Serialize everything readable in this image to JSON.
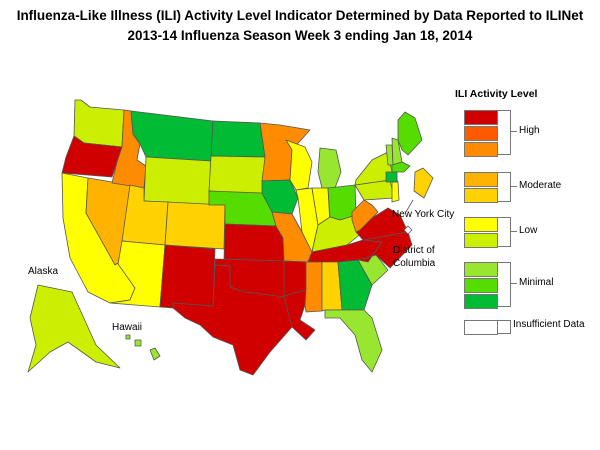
{
  "title": {
    "line1": "Influenza-Like Illness (ILI) Activity Level Indicator Determined by Data Reported to ILINet",
    "line2": "2013-14  Influenza Season Week  3 ending Jan 18, 2014"
  },
  "legend": {
    "title": "ILI Activity Level",
    "levels": [
      {
        "level": 10,
        "color": "#d00000"
      },
      {
        "level": 9,
        "color": "#ff5a00"
      },
      {
        "level": 8,
        "color": "#ff8c00"
      },
      {
        "level": 7,
        "color": "#ffb300"
      },
      {
        "level": 6,
        "color": "#ffd200"
      },
      {
        "level": 5,
        "color": "#ffff00"
      },
      {
        "level": 4,
        "color": "#ccee00"
      },
      {
        "level": 3,
        "color": "#99e630"
      },
      {
        "level": 2,
        "color": "#55dd00"
      },
      {
        "level": 1,
        "color": "#00bb33"
      },
      {
        "level": 0,
        "color": "#ffffff"
      }
    ],
    "groups": {
      "high": "High",
      "moderate": "Moderate",
      "low": "Low",
      "minimal": "Minimal",
      "insufficient": "Insufficient Data"
    }
  },
  "labels": {
    "nyc": "New York City",
    "dc1": "District of",
    "dc2": "Columbia",
    "alaska": "Alaska",
    "hawaii": "Hawaii"
  },
  "states": {
    "WA": 4,
    "OR": 10,
    "CA": 5,
    "NV": 7,
    "ID": 8,
    "MT": 1,
    "WY": 4,
    "UT": 6,
    "AZ": 5,
    "CO": 6,
    "NM": 10,
    "ND": 1,
    "SD": 4,
    "NE": 2,
    "KS": 10,
    "OK": 10,
    "TX": 10,
    "MN": 8,
    "IA": 1,
    "MO": 8,
    "AR": 10,
    "LA": 10,
    "WI": 5,
    "IL": 5,
    "MI": 3,
    "IN": 5,
    "OH": 2,
    "KY": 4,
    "TN": 10,
    "MS": 8,
    "AL": 6,
    "GA": 1,
    "FL": 3,
    "SC": 3,
    "NC": 10,
    "VA": 10,
    "WV": 8,
    "PA": 4,
    "NY": 4,
    "NJ": 5,
    "VT": 3,
    "NH": 3,
    "ME": 2,
    "MA": 2,
    "CT": 1,
    "AK": 4,
    "HI": 3,
    "NYC": 6
  }
}
